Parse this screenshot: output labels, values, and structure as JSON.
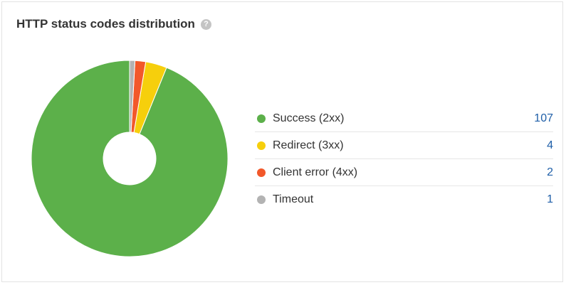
{
  "widget": {
    "title": "HTTP status codes distribution",
    "help_icon_glyph": "?"
  },
  "colors": {
    "success": "#5cb04a",
    "redirect": "#f6cf0c",
    "client_error": "#f2582a",
    "timeout": "#b3b3b3"
  },
  "chart_data": {
    "type": "pie",
    "donut": true,
    "categories": [
      "Success (2xx)",
      "Redirect (3xx)",
      "Client error (4xx)",
      "Timeout"
    ],
    "values": [
      107,
      4,
      2,
      1
    ],
    "colors": [
      "#5cb04a",
      "#f6cf0c",
      "#f2582a",
      "#b3b3b3"
    ],
    "title": "",
    "legend_placement": "right"
  },
  "legend": {
    "items": [
      {
        "label": "Success (2xx)",
        "value": "107",
        "color": "#5cb04a"
      },
      {
        "label": "Redirect (3xx)",
        "value": "4",
        "color": "#f6cf0c"
      },
      {
        "label": "Client error (4xx)",
        "value": "2",
        "color": "#f2582a"
      },
      {
        "label": "Timeout",
        "value": "1",
        "color": "#b3b3b3"
      }
    ]
  }
}
